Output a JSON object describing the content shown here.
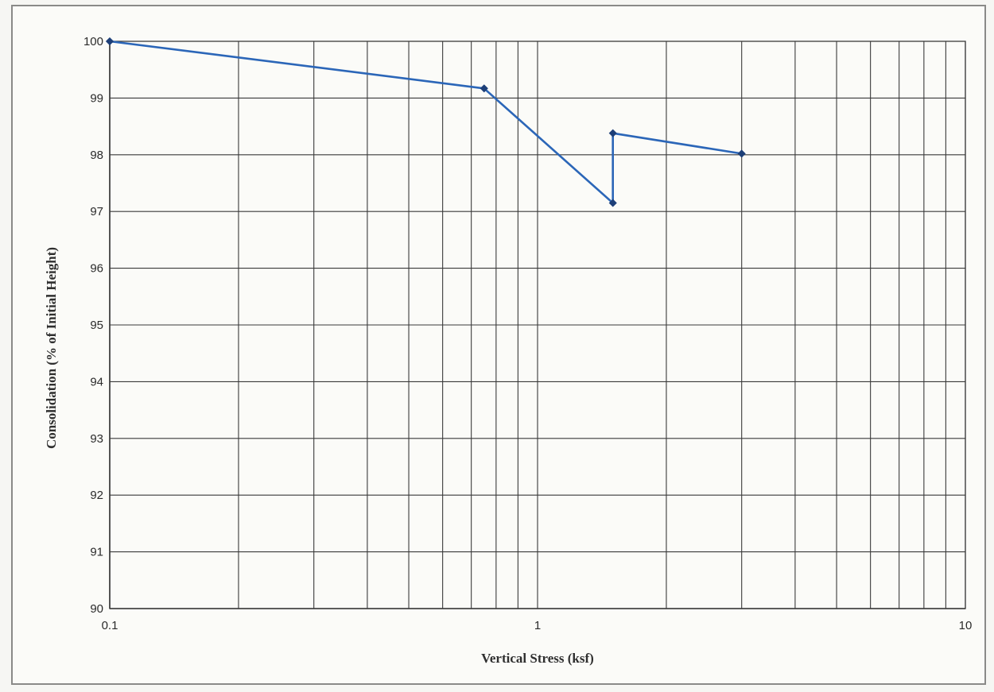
{
  "chart_data": {
    "type": "line",
    "title": "",
    "xlabel": "Vertical Stress (ksf)",
    "ylabel": "Consolidation (% of Initial Height)",
    "x_scale": "log",
    "xlim": [
      0.1,
      10
    ],
    "ylim": [
      90,
      100
    ],
    "grid": true,
    "legend": "none",
    "x_tick_labels": [
      "0.1",
      "1",
      "10"
    ],
    "y_tick_labels": [
      "90",
      "91",
      "92",
      "93",
      "94",
      "95",
      "96",
      "97",
      "98",
      "99",
      "100"
    ],
    "series": [
      {
        "x": [
          0.1,
          0.75,
          1.5,
          1.5,
          3.0
        ],
        "y": [
          100,
          99.17,
          97.15,
          98.38,
          98.02
        ],
        "color": "#2b66b8"
      }
    ]
  }
}
